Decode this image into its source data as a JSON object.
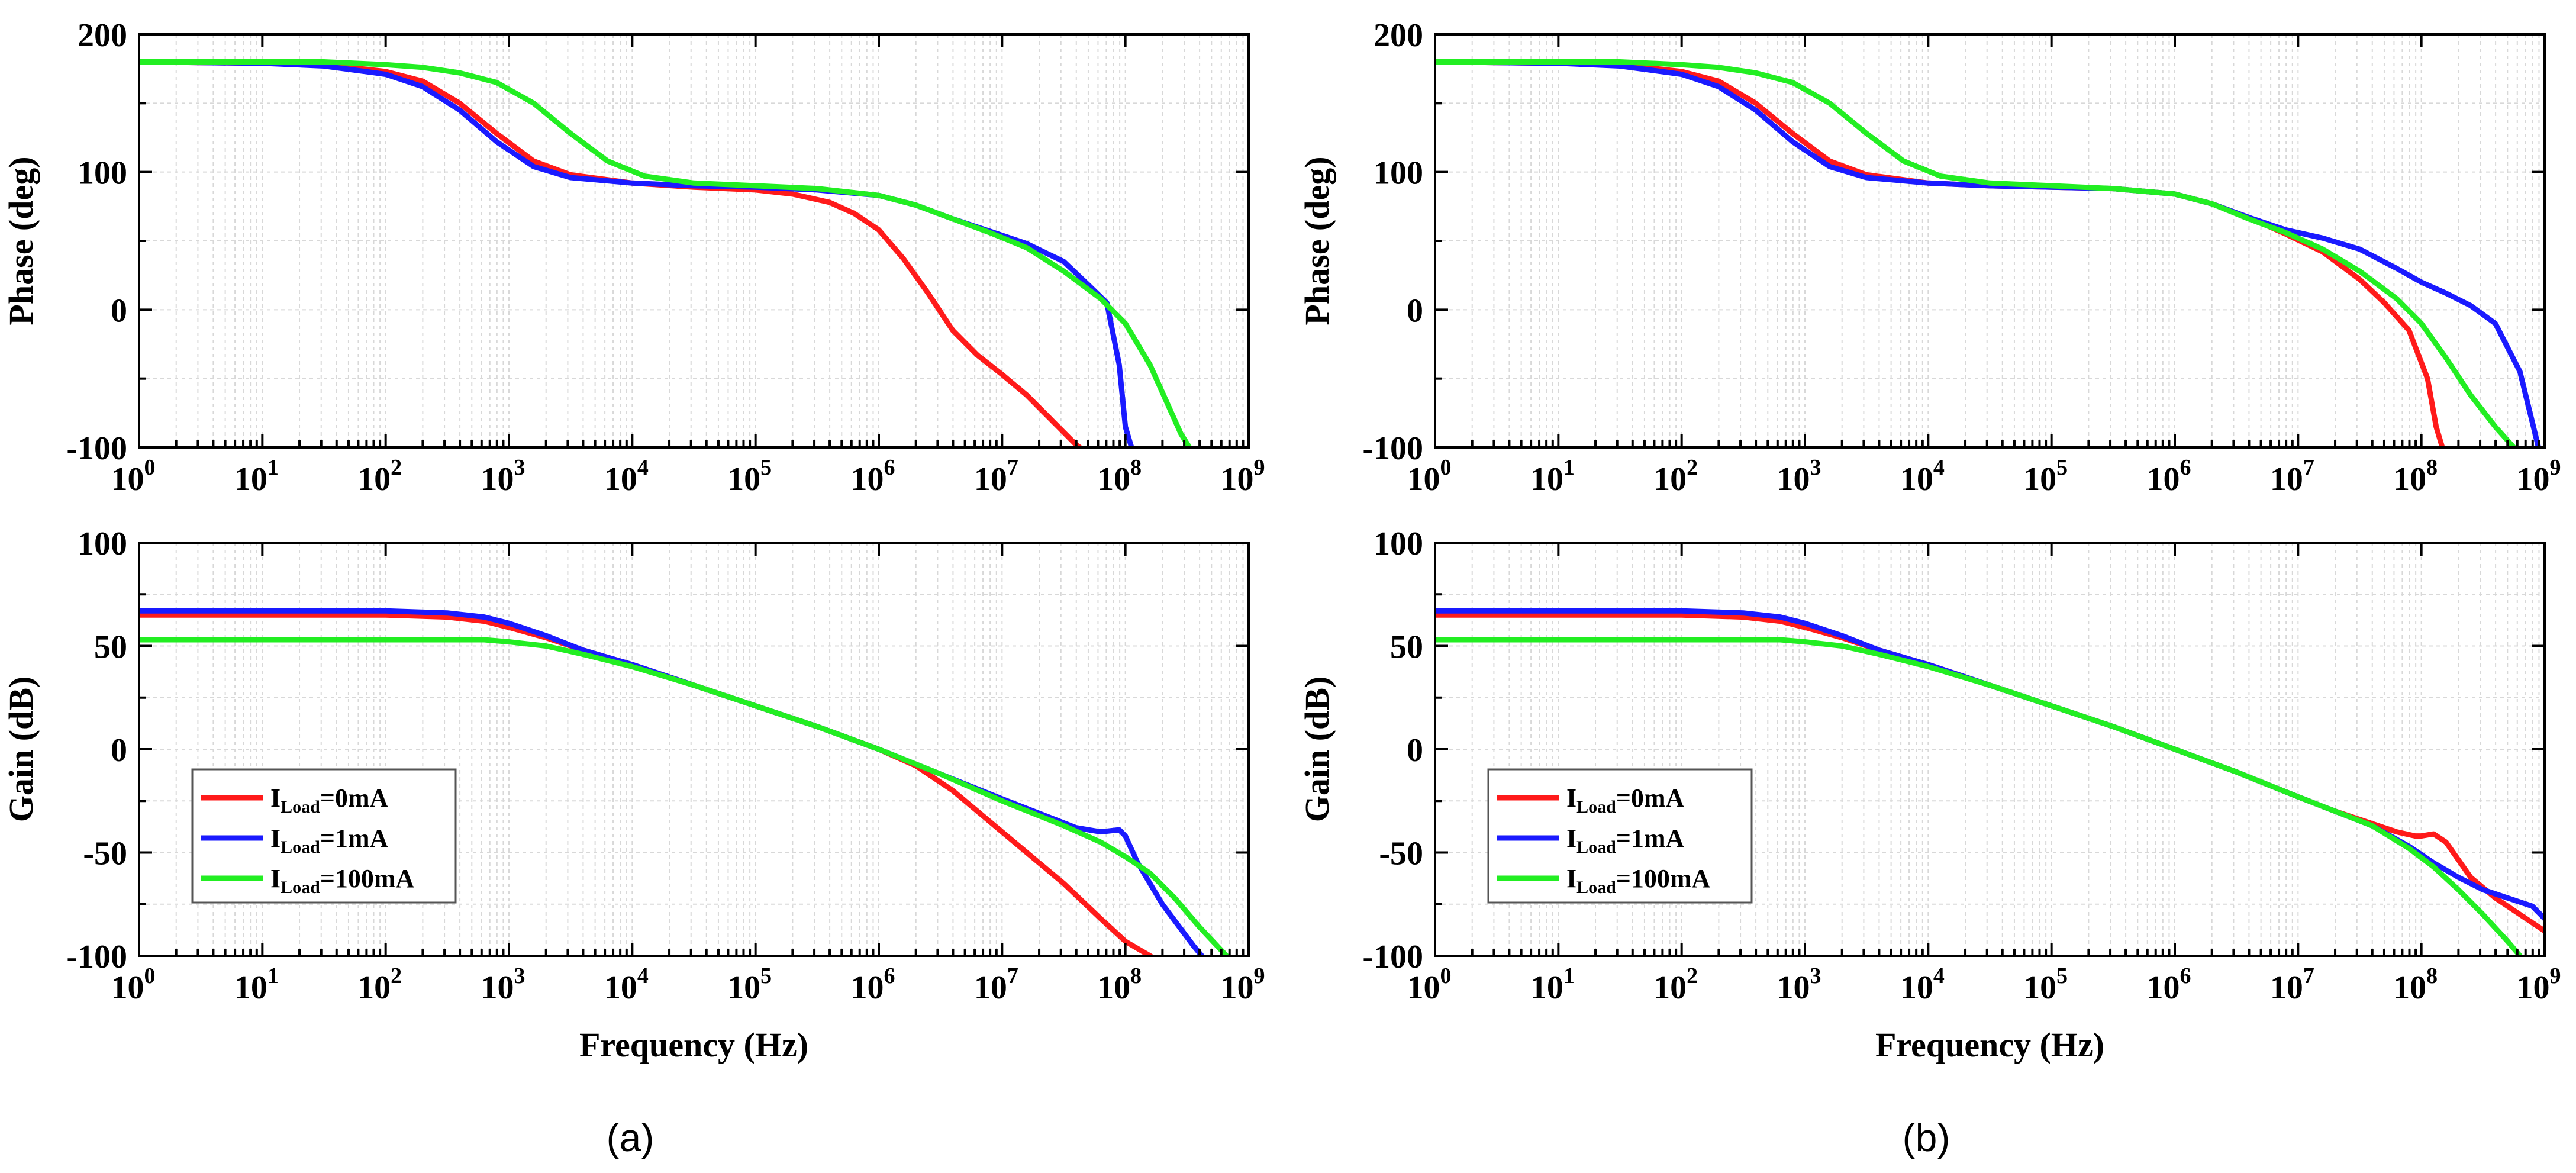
{
  "x_axis_label": "Frequency (Hz)",
  "legend": {
    "prefix": "I",
    "subscript": "Load",
    "entries": [
      "=0mA",
      "=1mA",
      "=100mA"
    ]
  },
  "colors": {
    "red": "#ff1a1a",
    "blue": "#1a1aff",
    "green": "#22ee22"
  },
  "panels": [
    {
      "label": "(a)"
    },
    {
      "label": "(b)"
    }
  ],
  "chart_data": [
    {
      "type": "line",
      "id": "a-phase",
      "panel": "(a)",
      "xscale": "log",
      "xlim": [
        0,
        9
      ],
      "x_ticks": [
        "1",
        "2",
        "3",
        "4",
        "5",
        "6",
        "7",
        "8",
        "9"
      ],
      "x_tick_first": "10",
      "x_tick_first_sup": "0",
      "ylabel": "Phase (deg)",
      "ylim": [
        -100,
        200
      ],
      "y_ticks": [
        "200",
        "100",
        "0",
        "-100"
      ],
      "grid": true,
      "series": [
        {
          "name": "I_Load=0mA",
          "color": "red",
          "log10_x": [
            0,
            1,
            1.5,
            2,
            2.3,
            2.6,
            2.9,
            3.2,
            3.5,
            4,
            4.5,
            5,
            5.3,
            5.6,
            5.8,
            6,
            6.2,
            6.4,
            6.6,
            6.8,
            7,
            7.2,
            7.4,
            7.6,
            7.63
          ],
          "y": [
            180,
            179,
            178,
            173,
            166,
            150,
            128,
            108,
            98,
            92,
            89,
            87,
            84,
            78,
            70,
            58,
            37,
            12,
            -15,
            -33,
            -47,
            -62,
            -80,
            -98,
            -100
          ]
        },
        {
          "name": "I_Load=1mA",
          "color": "blue",
          "log10_x": [
            0,
            1,
            1.5,
            2,
            2.3,
            2.6,
            2.9,
            3.2,
            3.5,
            4,
            4.5,
            5,
            5.5,
            6,
            6.3,
            6.6,
            6.9,
            7.2,
            7.5,
            7.7,
            7.85,
            7.95,
            8,
            8.05
          ],
          "y": [
            180,
            179,
            177,
            171,
            162,
            145,
            122,
            104,
            96,
            92,
            90,
            89,
            87,
            83,
            76,
            66,
            57,
            48,
            35,
            18,
            5,
            -40,
            -85,
            -100
          ]
        },
        {
          "name": "I_Load=100mA",
          "color": "green",
          "log10_x": [
            0,
            1,
            1.5,
            2,
            2.3,
            2.6,
            2.9,
            3.2,
            3.5,
            3.8,
            4.1,
            4.5,
            5,
            5.5,
            6,
            6.3,
            6.6,
            6.9,
            7.2,
            7.5,
            7.8,
            8,
            8.2,
            8.35,
            8.45,
            8.52
          ],
          "y": [
            180,
            180,
            180,
            178,
            176,
            172,
            165,
            150,
            128,
            108,
            97,
            92,
            90,
            88,
            83,
            76,
            66,
            56,
            45,
            28,
            8,
            -10,
            -40,
            -70,
            -90,
            -100
          ]
        }
      ]
    },
    {
      "type": "line",
      "id": "a-gain",
      "panel": "(a)",
      "xscale": "log",
      "xlim": [
        0,
        9
      ],
      "xlabel": "Frequency (Hz)",
      "x_ticks": [
        "1",
        "2",
        "3",
        "4",
        "5",
        "6",
        "7",
        "8",
        "9"
      ],
      "x_tick_first": "10",
      "x_tick_first_sup": "0",
      "ylabel": "Gain (dB)",
      "ylim": [
        -100,
        100
      ],
      "y_ticks": [
        "100",
        "50",
        "0",
        "-50",
        "-100"
      ],
      "grid": true,
      "series": [
        {
          "name": "I_Load=0mA",
          "color": "red",
          "log10_x": [
            0,
            1,
            2,
            2.5,
            2.8,
            3,
            3.3,
            3.6,
            4,
            4.5,
            5,
            5.5,
            6,
            6.3,
            6.6,
            6.9,
            7.2,
            7.5,
            7.8,
            8,
            8.2,
            8.25
          ],
          "y": [
            65,
            65,
            65,
            64,
            62,
            59,
            54,
            48,
            41,
            31,
            21,
            11,
            0,
            -8,
            -20,
            -35,
            -50,
            -65,
            -82,
            -93,
            -100,
            -102
          ]
        },
        {
          "name": "I_Load=1mA",
          "color": "blue",
          "log10_x": [
            0,
            1,
            2,
            2.5,
            2.8,
            3,
            3.3,
            3.6,
            4,
            4.5,
            5,
            5.5,
            6,
            6.5,
            7,
            7.3,
            7.6,
            7.8,
            7.95,
            8,
            8.1,
            8.3,
            8.55,
            8.62
          ],
          "y": [
            67,
            67,
            67,
            66,
            64,
            61,
            55,
            48,
            41,
            31,
            21,
            11,
            0,
            -12,
            -24,
            -31,
            -38,
            -40,
            -39,
            -42,
            -55,
            -75,
            -95,
            -100
          ]
        },
        {
          "name": "I_Load=100mA",
          "color": "green",
          "log10_x": [
            0,
            1,
            2,
            2.5,
            2.8,
            3,
            3.3,
            3.6,
            4,
            4.5,
            5,
            5.5,
            6,
            6.5,
            7,
            7.5,
            7.8,
            8,
            8.2,
            8.4,
            8.6,
            8.82
          ],
          "y": [
            53,
            53,
            53,
            53,
            53,
            52,
            50,
            46,
            40,
            31,
            21,
            11,
            0,
            -12,
            -25,
            -37,
            -45,
            -52,
            -60,
            -72,
            -86,
            -100
          ]
        }
      ]
    },
    {
      "type": "line",
      "id": "b-phase",
      "panel": "(b)",
      "xscale": "log",
      "xlim": [
        0,
        9
      ],
      "x_ticks": [
        "1",
        "2",
        "3",
        "4",
        "5",
        "6",
        "7",
        "8",
        "9"
      ],
      "x_tick_first": "10",
      "x_tick_first_sup": "0",
      "ylabel": "Phase (deg)",
      "ylim": [
        -100,
        200
      ],
      "y_ticks": [
        "200",
        "100",
        "0",
        "-100"
      ],
      "grid": true,
      "series": [
        {
          "name": "I_Load=0mA",
          "color": "red",
          "log10_x": [
            0,
            1,
            1.5,
            2,
            2.3,
            2.6,
            2.9,
            3.2,
            3.5,
            4,
            4.5,
            5,
            5.5,
            6,
            6.3,
            6.6,
            6.9,
            7.2,
            7.5,
            7.7,
            7.9,
            8.05,
            8.12,
            8.17
          ],
          "y": [
            180,
            179,
            178,
            173,
            166,
            150,
            128,
            108,
            98,
            92,
            90,
            89,
            88,
            84,
            77,
            67,
            55,
            42,
            22,
            5,
            -15,
            -50,
            -85,
            -100
          ]
        },
        {
          "name": "I_Load=1mA",
          "color": "blue",
          "log10_x": [
            0,
            1,
            1.5,
            2,
            2.3,
            2.6,
            2.9,
            3.2,
            3.5,
            4,
            4.5,
            5,
            5.5,
            6,
            6.3,
            6.6,
            6.9,
            7.2,
            7.5,
            7.8,
            8,
            8.2,
            8.4,
            8.6,
            8.8,
            8.95
          ],
          "y": [
            180,
            179,
            177,
            171,
            162,
            145,
            122,
            104,
            96,
            92,
            90,
            89,
            88,
            84,
            77,
            67,
            58,
            52,
            44,
            30,
            20,
            12,
            3,
            -10,
            -45,
            -100
          ]
        },
        {
          "name": "I_Load=100mA",
          "color": "green",
          "log10_x": [
            0,
            1,
            1.5,
            2,
            2.3,
            2.6,
            2.9,
            3.2,
            3.5,
            3.8,
            4.1,
            4.5,
            5,
            5.5,
            6,
            6.3,
            6.6,
            6.9,
            7.2,
            7.5,
            7.8,
            8,
            8.2,
            8.4,
            8.6,
            8.75
          ],
          "y": [
            180,
            180,
            180,
            178,
            176,
            172,
            165,
            150,
            128,
            108,
            97,
            92,
            90,
            88,
            84,
            77,
            66,
            56,
            44,
            28,
            8,
            -10,
            -35,
            -62,
            -85,
            -100
          ]
        }
      ]
    },
    {
      "type": "line",
      "id": "b-gain",
      "panel": "(b)",
      "xscale": "log",
      "xlim": [
        0,
        9
      ],
      "xlabel": "Frequency (Hz)",
      "x_ticks": [
        "1",
        "2",
        "3",
        "4",
        "5",
        "6",
        "7",
        "8",
        "9"
      ],
      "x_tick_first": "10",
      "x_tick_first_sup": "0",
      "ylabel": "Gain (dB)",
      "ylim": [
        -100,
        100
      ],
      "y_ticks": [
        "100",
        "50",
        "0",
        "-50",
        "-100"
      ],
      "grid": true,
      "series": [
        {
          "name": "I_Load=0mA",
          "color": "red",
          "log10_x": [
            0,
            1,
            2,
            2.5,
            2.8,
            3,
            3.3,
            3.6,
            4,
            4.5,
            5,
            5.5,
            6,
            6.5,
            7,
            7.3,
            7.6,
            7.8,
            7.95,
            8,
            8.1,
            8.2,
            8.4,
            8.6,
            8.8,
            9
          ],
          "y": [
            65,
            65,
            65,
            64,
            62,
            59,
            54,
            48,
            41,
            31,
            21,
            11,
            0,
            -11,
            -23,
            -30,
            -36,
            -40,
            -42,
            -42,
            -41,
            -45,
            -62,
            -72,
            -80,
            -88
          ]
        },
        {
          "name": "I_Load=1mA",
          "color": "blue",
          "log10_x": [
            0,
            1,
            2,
            2.5,
            2.8,
            3,
            3.3,
            3.6,
            4,
            4.5,
            5,
            5.5,
            6,
            6.5,
            7,
            7.3,
            7.6,
            7.9,
            8.1,
            8.3,
            8.5,
            8.7,
            8.9,
            9
          ],
          "y": [
            67,
            67,
            67,
            66,
            64,
            61,
            55,
            48,
            41,
            31,
            21,
            11,
            0,
            -11,
            -23,
            -30,
            -37,
            -47,
            -55,
            -62,
            -68,
            -72,
            -76,
            -82
          ]
        },
        {
          "name": "I_Load=100mA",
          "color": "green",
          "log10_x": [
            0,
            1,
            2,
            2.5,
            2.8,
            3,
            3.3,
            3.6,
            4,
            4.5,
            5,
            5.5,
            6,
            6.5,
            7,
            7.3,
            7.6,
            7.9,
            8.1,
            8.3,
            8.5,
            8.7,
            8.8
          ],
          "y": [
            53,
            53,
            53,
            53,
            53,
            52,
            50,
            46,
            40,
            31,
            21,
            11,
            0,
            -11,
            -23,
            -30,
            -37,
            -48,
            -57,
            -68,
            -80,
            -93,
            -100
          ]
        }
      ]
    }
  ]
}
